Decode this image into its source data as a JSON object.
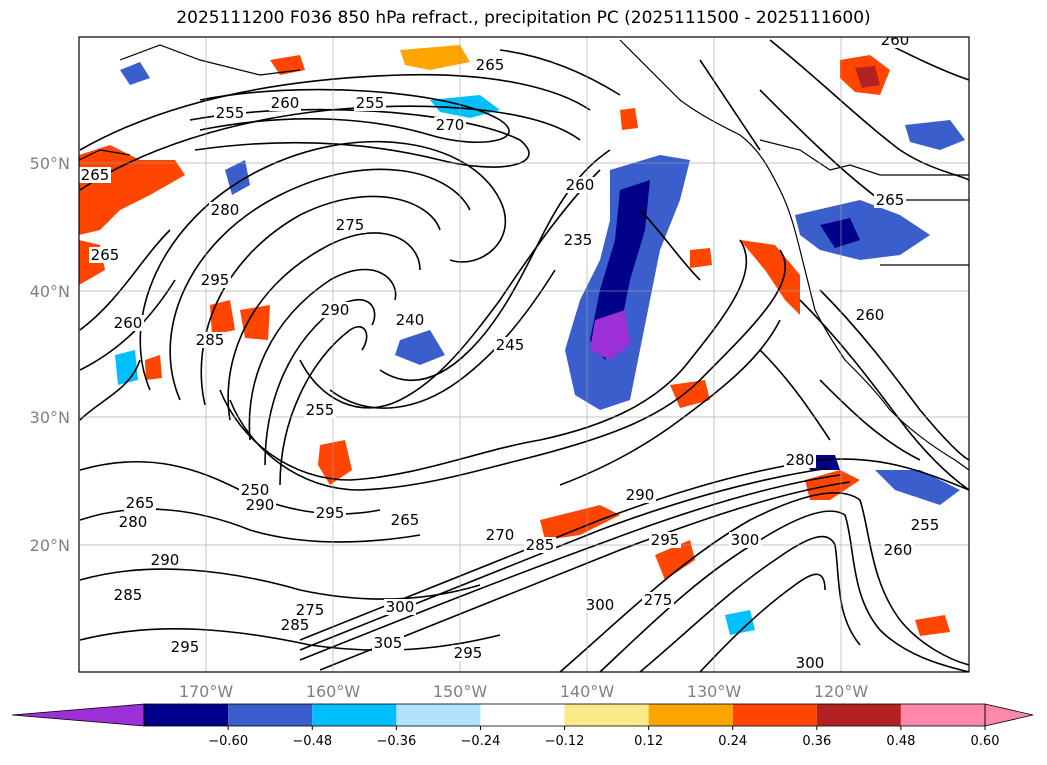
{
  "title": "2025111200 F036 850 hPa refract., precipitation PC (2025111500 - 2025111600)",
  "lat_labels": [
    "50°N",
    "40°N",
    "30°N",
    "20°N"
  ],
  "lon_labels": [
    "170°W",
    "160°W",
    "150°W",
    "140°W",
    "130°W",
    "120°W"
  ],
  "contour_labels": [
    "260",
    "265",
    "255",
    "270",
    "260",
    "265",
    "255",
    "280",
    "275",
    "265",
    "295",
    "260",
    "285",
    "290",
    "240",
    "245",
    "255",
    "260",
    "235",
    "250",
    "265",
    "290",
    "280",
    "270",
    "285",
    "265",
    "280",
    "290",
    "275",
    "300",
    "295",
    "300",
    "275",
    "285",
    "300",
    "305",
    "295",
    "295",
    "260",
    "255",
    "290",
    "285",
    "295",
    "300",
    "260",
    "265"
  ],
  "colorbar": {
    "ticks": [
      "−0.60",
      "−0.48",
      "−0.36",
      "−0.24",
      "−0.12",
      "0.12",
      "0.24",
      "0.36",
      "0.48",
      "0.60"
    ],
    "colors": [
      "#9b30d6",
      "#00008b",
      "#3a5fcd",
      "#00bfff",
      "#b0e2ff",
      "#ffffff",
      "#fce98a",
      "#ffa500",
      "#ff4500",
      "#b22222",
      "#ff88aa",
      "#ff88aa"
    ]
  }
}
